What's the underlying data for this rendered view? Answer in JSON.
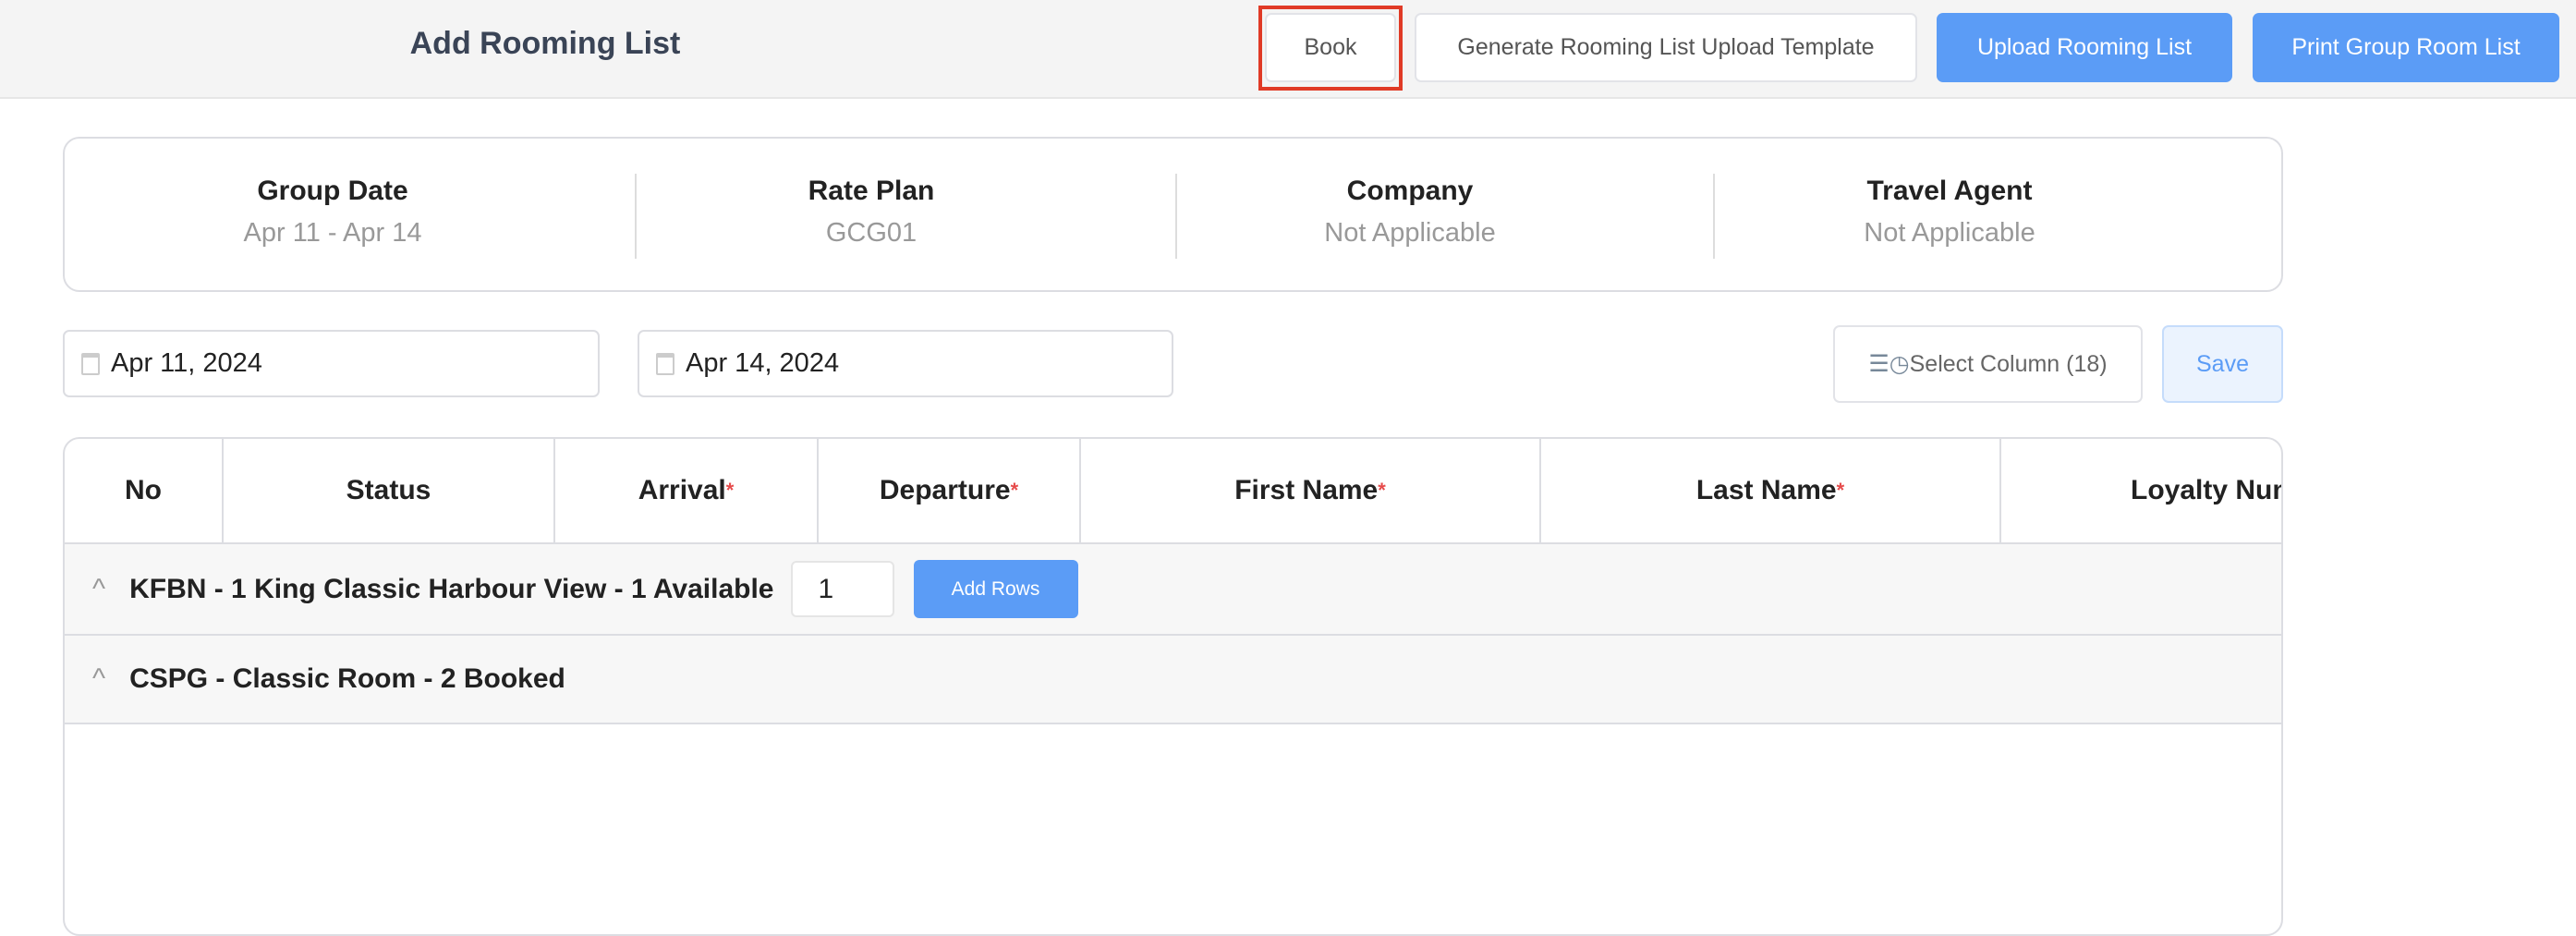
{
  "header": {
    "title": "Add Rooming List",
    "buttons": {
      "book": "Book",
      "generate": "Generate Rooming List Upload Template",
      "upload": "Upload Rooming List",
      "print": "Print Group Room List"
    }
  },
  "info": [
    {
      "label": "Group Date",
      "value": "Apr 11 - Apr 14"
    },
    {
      "label": "Rate Plan",
      "value": "GCG01"
    },
    {
      "label": "Company",
      "value": "Not Applicable"
    },
    {
      "label": "Travel Agent",
      "value": "Not Applicable"
    }
  ],
  "filters": {
    "start_date": "Apr 11, 2024",
    "end_date": "Apr 14, 2024",
    "select_column": "Select Column (18)",
    "save": "Save"
  },
  "table": {
    "columns": [
      "No",
      "Status",
      "Arrival",
      "Departure",
      "First Name",
      "Last Name",
      "Loyalty Num"
    ],
    "required_mark": "*",
    "groups": [
      {
        "label": "KFBN - 1 King Classic Harbour View - 1 Available",
        "rows_input": "1",
        "add_rows": "Add Rows"
      },
      {
        "label": "CSPG - Classic Room - 2 Booked"
      }
    ]
  },
  "colors": {
    "accent": "#5b9cf6",
    "highlight": "#e03a26"
  }
}
